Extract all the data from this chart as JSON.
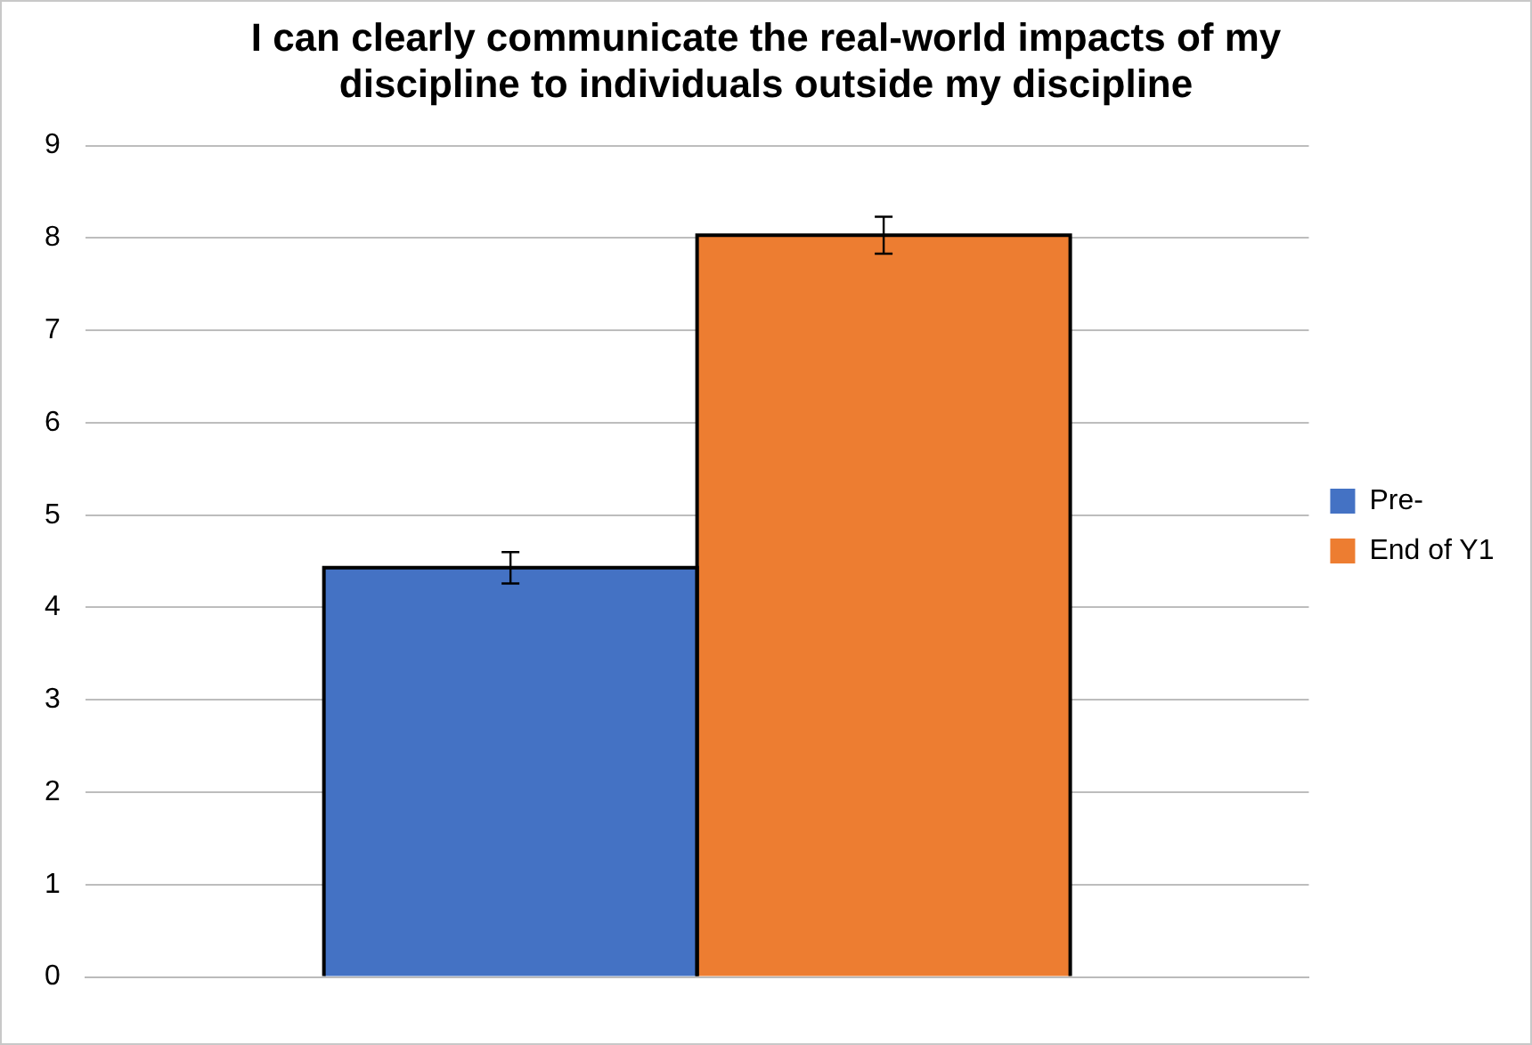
{
  "chart_data": {
    "type": "bar",
    "title": "I can clearly communicate the real-world impacts of my discipline to individuals outside my discipline",
    "categories": [
      null
    ],
    "series": [
      {
        "name": "Pre-",
        "color": "#4472c4",
        "values": [
          4.43
        ],
        "errors": [
          0.17
        ]
      },
      {
        "name": "End of Y1",
        "color": "#ed7d31",
        "values": [
          8.03
        ],
        "errors": [
          0.2
        ]
      }
    ],
    "ylim": [
      0,
      9
    ],
    "yticks": [
      0,
      1,
      2,
      3,
      4,
      5,
      6,
      7,
      8,
      9
    ],
    "grid": "y",
    "legend": "right"
  }
}
